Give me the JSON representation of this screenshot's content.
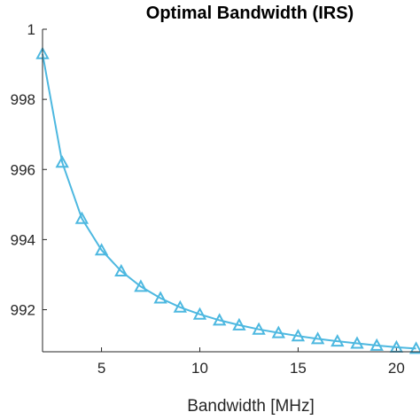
{
  "chart_data": {
    "type": "line",
    "title": "Optimal Bandwidth (IRS)",
    "xlabel": "Bandwidth [MHz]",
    "ylabel": "",
    "x_ticks": [
      "5",
      "10",
      "15",
      "20"
    ],
    "x_tick_values": [
      5,
      10,
      15,
      20
    ],
    "y_ticks": [
      "992",
      "994",
      "996",
      "998",
      "1"
    ],
    "y_tick_values": [
      0.992,
      0.994,
      0.996,
      0.998,
      1.0
    ],
    "xlim": [
      2,
      21.2
    ],
    "ylim": [
      0.9908,
      1.0
    ],
    "grid": false,
    "series": [
      {
        "marker": "triangle",
        "color": "#4db8e0",
        "x": [
          2,
          3,
          4,
          5,
          6,
          7,
          8,
          9,
          10,
          11,
          12,
          13,
          14,
          15,
          16,
          17,
          18,
          19,
          20,
          21
        ],
        "y": [
          0.9993,
          0.9962,
          0.9946,
          0.9937,
          0.9931,
          0.99266,
          0.99233,
          0.99207,
          0.99187,
          0.9917,
          0.99156,
          0.99144,
          0.99134,
          0.99125,
          0.99117,
          0.9911,
          0.99104,
          0.99098,
          0.99093,
          0.99089
        ]
      }
    ]
  }
}
